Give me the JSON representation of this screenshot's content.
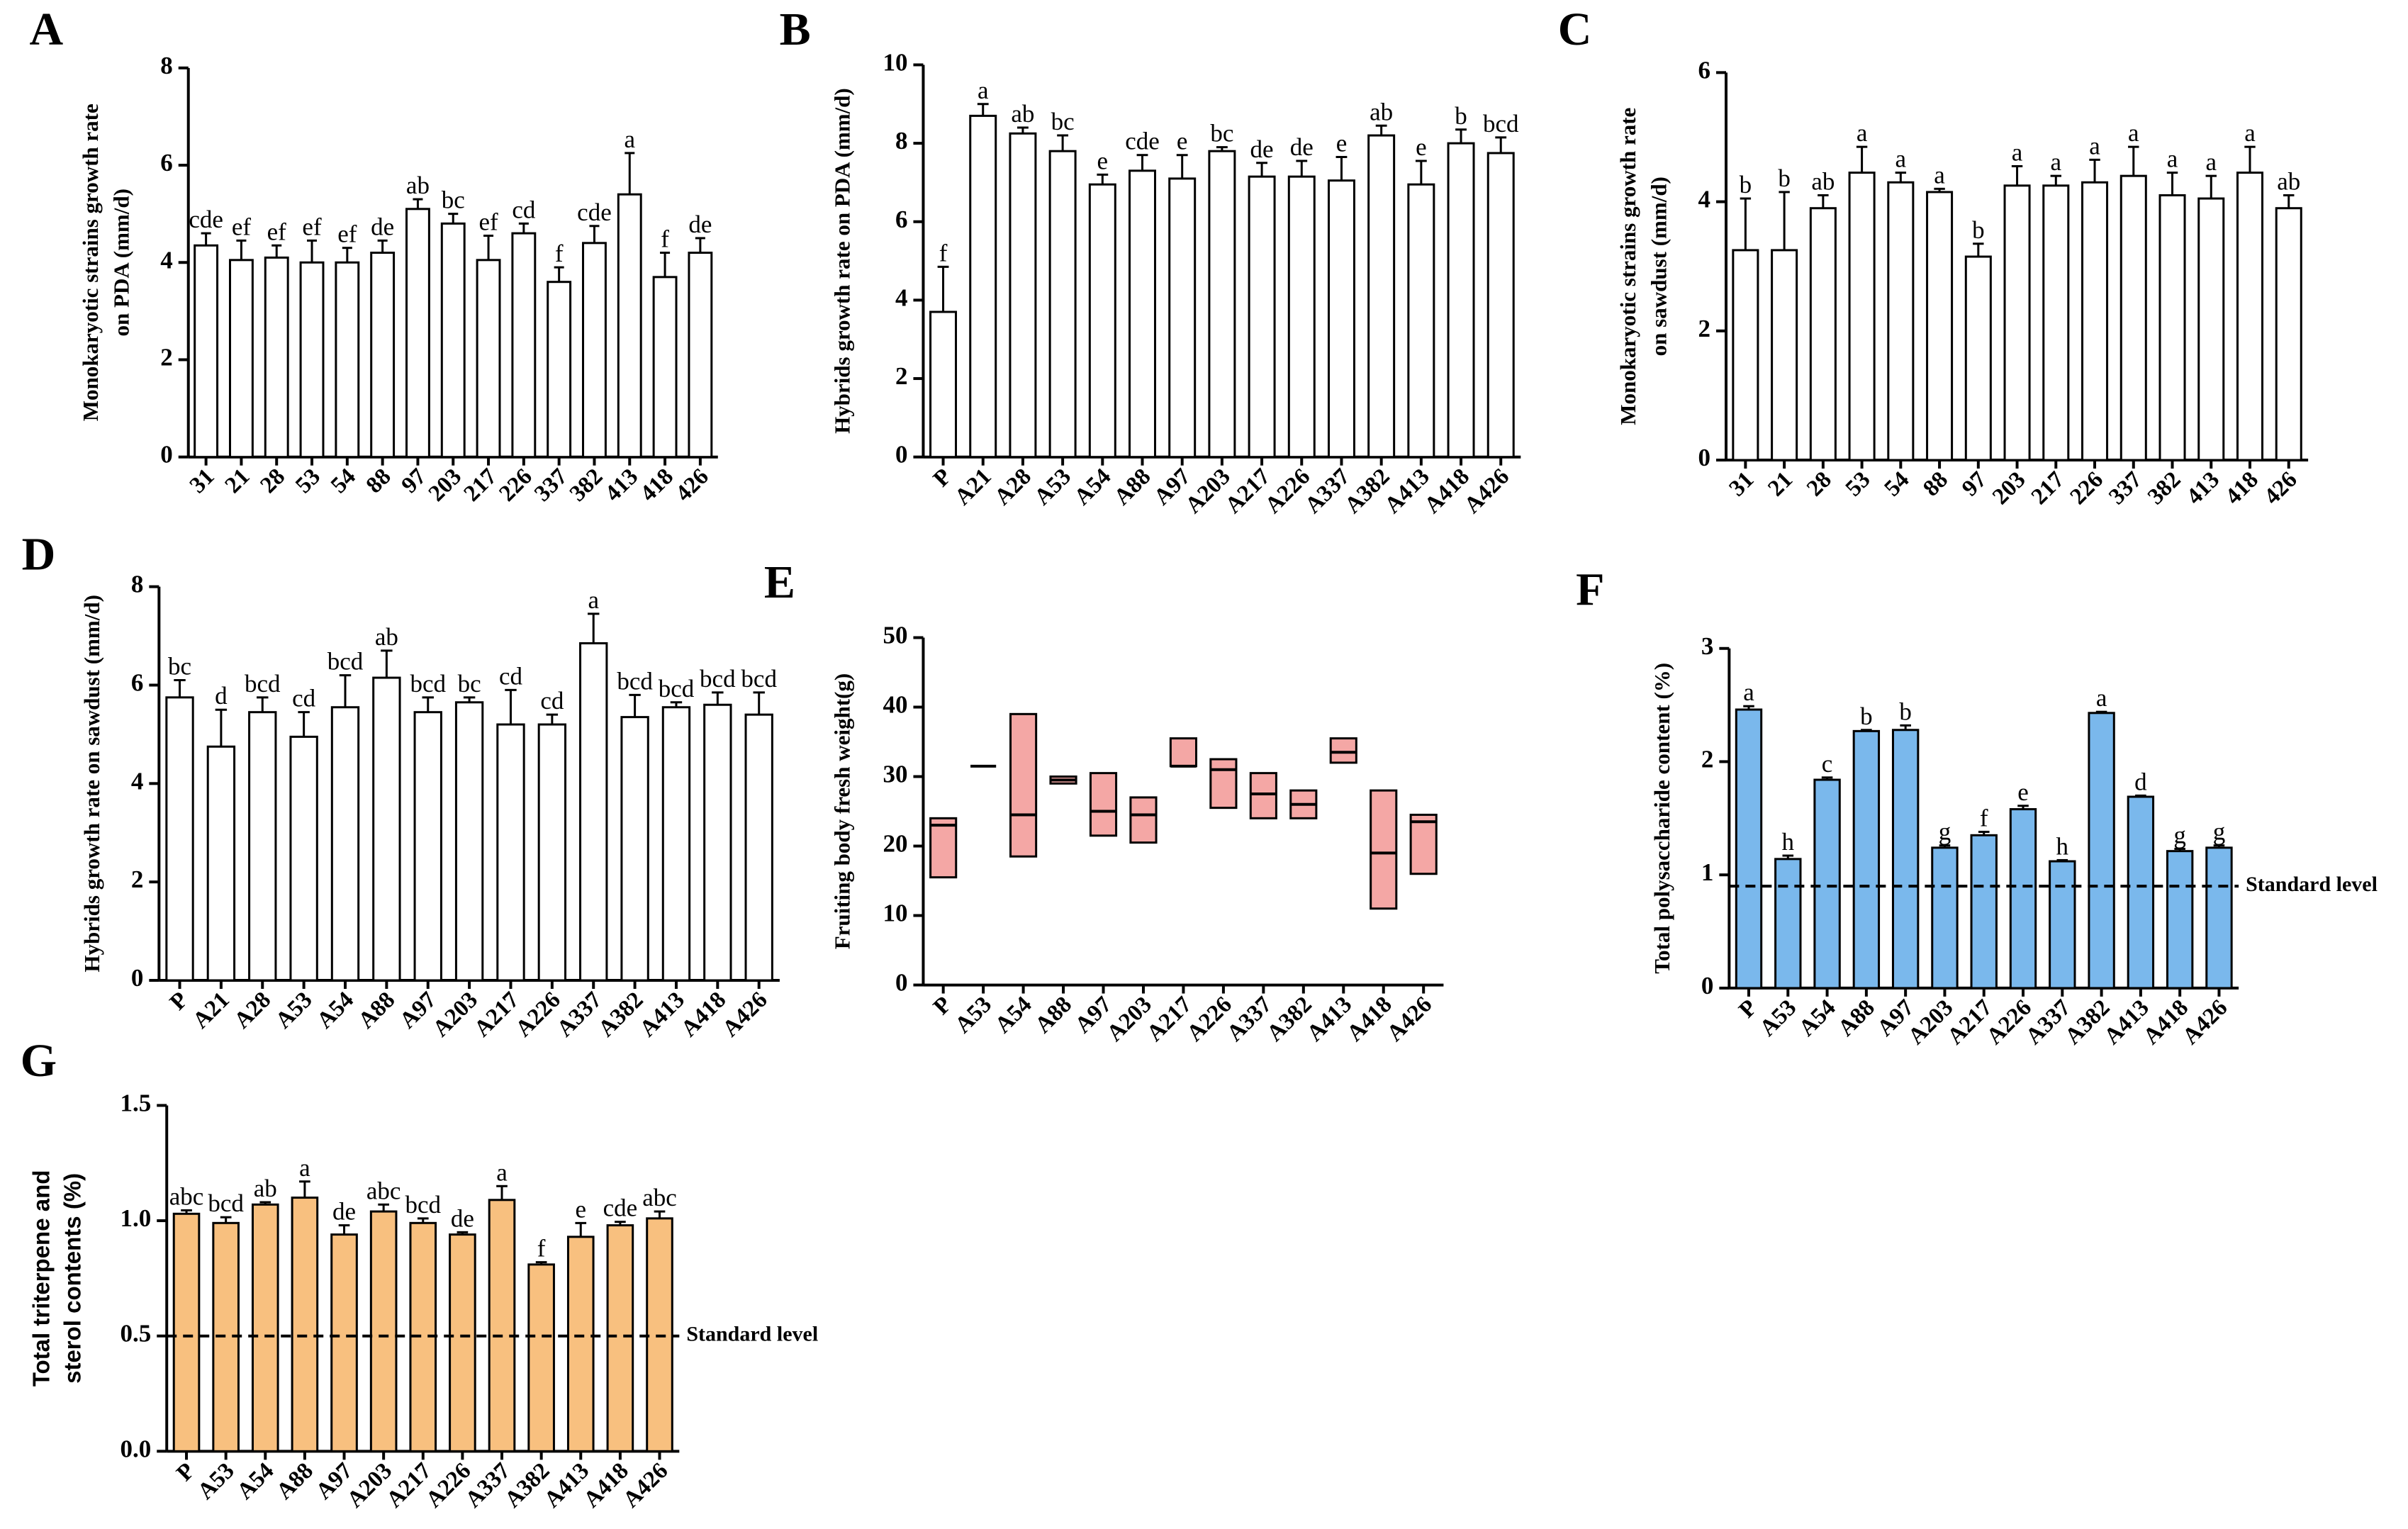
{
  "chart_data": [
    {
      "type": "bar",
      "panel": "A",
      "ylabel": [
        "Monokaryotic strains growth rate",
        "on  PDA (mm/d)"
      ],
      "categories": [
        "31",
        "21",
        "28",
        "53",
        "54",
        "88",
        "97",
        "203",
        "217",
        "226",
        "337",
        "382",
        "413",
        "418",
        "426"
      ],
      "values": [
        4.35,
        4.05,
        4.1,
        4.0,
        4.0,
        4.2,
        5.1,
        4.8,
        4.05,
        4.6,
        3.6,
        4.4,
        5.4,
        3.7,
        4.2
      ],
      "errors": [
        0.25,
        0.4,
        0.25,
        0.45,
        0.3,
        0.25,
        0.2,
        0.2,
        0.5,
        0.2,
        0.3,
        0.35,
        0.85,
        0.5,
        0.3
      ],
      "letters": [
        "cde",
        "ef",
        "ef",
        "ef",
        "ef",
        "de",
        "ab",
        "bc",
        "ef",
        "cd",
        "f",
        "cde",
        "a",
        "f",
        "de"
      ],
      "color": "#ffffff",
      "ylim": [
        0,
        8
      ],
      "yticks": [
        0,
        2,
        4,
        6,
        8
      ]
    },
    {
      "type": "bar",
      "panel": "B",
      "ylabel": [
        "Hybrids growth  rate on PDA (mm/d)"
      ],
      "categories": [
        "P",
        "A21",
        "A28",
        "A53",
        "A54",
        "A88",
        "A97",
        "A203",
        "A217",
        "A226",
        "A337",
        "A382",
        "A413",
        "A418",
        "A426"
      ],
      "values": [
        3.7,
        8.7,
        8.25,
        7.8,
        6.95,
        7.3,
        7.1,
        7.8,
        7.15,
        7.15,
        7.05,
        8.2,
        6.95,
        8.0,
        7.75
      ],
      "errors": [
        1.15,
        0.3,
        0.15,
        0.4,
        0.25,
        0.4,
        0.6,
        0.1,
        0.35,
        0.4,
        0.6,
        0.25,
        0.6,
        0.35,
        0.4
      ],
      "letters": [
        "f",
        "a",
        "ab",
        "bc",
        "e",
        "cde",
        "e",
        "bc",
        "de",
        "de",
        "e",
        "ab",
        "e",
        "b",
        "bcd"
      ],
      "color": "#ffffff",
      "ylim": [
        0,
        10
      ],
      "yticks": [
        0,
        2,
        4,
        6,
        8,
        10
      ]
    },
    {
      "type": "bar",
      "panel": "C",
      "ylabel": [
        "Monokaryotic strains growth  rate",
        "on sawdust  (mm/d)"
      ],
      "categories": [
        "31",
        "21",
        "28",
        "53",
        "54",
        "88",
        "97",
        "203",
        "217",
        "226",
        "337",
        "382",
        "413",
        "418",
        "426"
      ],
      "values": [
        3.25,
        3.25,
        3.9,
        4.45,
        4.3,
        4.15,
        3.15,
        4.25,
        4.25,
        4.3,
        4.4,
        4.1,
        4.05,
        4.45,
        3.9
      ],
      "errors": [
        0.8,
        0.9,
        0.2,
        0.4,
        0.15,
        0.05,
        0.2,
        0.3,
        0.15,
        0.35,
        0.45,
        0.35,
        0.35,
        0.4,
        0.2
      ],
      "letters": [
        "b",
        "b",
        "ab",
        "a",
        "a",
        "a",
        "b",
        "a",
        "a",
        "a",
        "a",
        "a",
        "a",
        "a",
        "ab"
      ],
      "color": "#ffffff",
      "ylim": [
        0,
        6
      ],
      "yticks": [
        0,
        2,
        4,
        6
      ]
    },
    {
      "type": "bar",
      "panel": "D",
      "ylabel": [
        "Hybrids  growth  rate on sawdust  (mm/d)"
      ],
      "categories": [
        "P",
        "A21",
        "A28",
        "A53",
        "A54",
        "A88",
        "A97",
        "A203",
        "A217",
        "A226",
        "A337",
        "A382",
        "A413",
        "A418",
        "A426"
      ],
      "values": [
        5.75,
        4.75,
        5.45,
        4.95,
        5.55,
        6.15,
        5.45,
        5.65,
        5.2,
        5.2,
        6.85,
        5.35,
        5.55,
        5.6,
        5.4
      ],
      "errors": [
        0.35,
        0.75,
        0.3,
        0.5,
        0.65,
        0.55,
        0.3,
        0.1,
        0.7,
        0.2,
        0.6,
        0.45,
        0.1,
        0.25,
        0.45
      ],
      "letters": [
        "bc",
        "d",
        "bcd",
        "cd",
        "bcd",
        "ab",
        "bcd",
        "bc",
        "cd",
        "cd",
        "a",
        "bcd",
        "bcd",
        "bcd",
        "bcd"
      ],
      "color": "#ffffff",
      "ylim": [
        0,
        8
      ],
      "yticks": [
        0,
        2,
        4,
        6,
        8
      ]
    },
    {
      "type": "floating",
      "panel": "E",
      "ylabel": [
        "Fruiting body fresh weight(g)"
      ],
      "categories": [
        "P",
        "A53",
        "A54",
        "A88",
        "A97",
        "A203",
        "A217",
        "A226",
        "A337",
        "A382",
        "A413",
        "A418",
        "A426"
      ],
      "low": [
        15.5,
        31.5,
        18.5,
        29,
        21.5,
        20.5,
        31.5,
        25.5,
        24,
        24,
        32,
        11,
        16
      ],
      "high": [
        24,
        31.5,
        39,
        30,
        30.5,
        27,
        35.5,
        32.5,
        30.5,
        28,
        35.5,
        28,
        24.5
      ],
      "median": [
        23,
        31.5,
        24.5,
        29.5,
        25,
        24.5,
        31.5,
        31,
        27.5,
        26,
        33.5,
        19,
        23.5
      ],
      "color": "#f4a7a5",
      "ylim": [
        0,
        50
      ],
      "yticks": [
        0,
        10,
        20,
        30,
        40,
        50
      ]
    },
    {
      "type": "bar",
      "panel": "F",
      "ylabel": [
        "Total polysaccharide content (%)"
      ],
      "categories": [
        "P",
        "A53",
        "A54",
        "A88",
        "A97",
        "A203",
        "A217",
        "A226",
        "A337",
        "A382",
        "A413",
        "A418",
        "A426"
      ],
      "values": [
        2.46,
        1.14,
        1.84,
        2.27,
        2.28,
        1.24,
        1.35,
        1.58,
        1.12,
        2.43,
        1.69,
        1.21,
        1.24
      ],
      "errors": [
        0.03,
        0.03,
        0.02,
        0.01,
        0.04,
        0.02,
        0.03,
        0.03,
        0.01,
        0.01,
        0.01,
        0.02,
        0.02
      ],
      "letters": [
        "a",
        "h",
        "c",
        "b",
        "b",
        "g",
        "f",
        "e",
        "h",
        "a",
        "d",
        "g",
        "g"
      ],
      "standard": 0.9,
      "standard_label": "Standard level",
      "color": "#7ab8ec",
      "ylim": [
        0,
        3
      ],
      "yticks": [
        0,
        1,
        2,
        3
      ]
    },
    {
      "type": "bar",
      "panel": "G",
      "ylabel": [
        "Total triterpene and",
        "sterol contents (%)"
      ],
      "categories": [
        "P",
        "A53",
        "A54",
        "A88",
        "A97",
        "A203",
        "A217",
        "A226",
        "A337",
        "A382",
        "A413",
        "A418",
        "A426"
      ],
      "values": [
        1.03,
        0.99,
        1.07,
        1.1,
        0.94,
        1.04,
        0.99,
        0.94,
        1.09,
        0.81,
        0.93,
        0.98,
        1.01
      ],
      "errors": [
        0.015,
        0.025,
        0.01,
        0.07,
        0.04,
        0.03,
        0.02,
        0.01,
        0.06,
        0.01,
        0.06,
        0.015,
        0.03
      ],
      "letters": [
        "abc",
        "bcd",
        "ab",
        "a",
        "de",
        "abc",
        "bcd",
        "de",
        "a",
        "f",
        "e",
        "cde",
        "abc"
      ],
      "standard": 0.5,
      "standard_label": "Standard level",
      "color": "#f8c07f",
      "ylim": [
        0,
        1.5
      ],
      "yticks": [
        {
          "value": 0,
          "label": "0.0"
        },
        {
          "value": 0.5,
          "label": "0.5"
        },
        {
          "value": 1,
          "label": "1.0"
        },
        {
          "value": 1.5,
          "label": "1.5"
        }
      ]
    }
  ]
}
